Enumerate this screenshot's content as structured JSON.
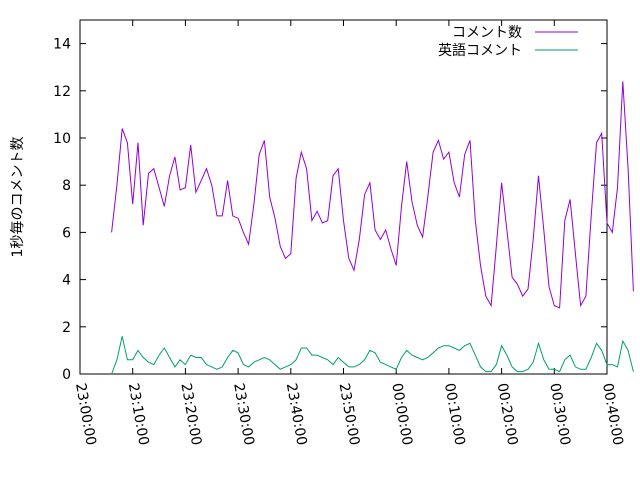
{
  "chart_data": {
    "type": "line",
    "title": "",
    "xlabel": "",
    "ylabel": "1秒毎のコメント数",
    "x_tick_labels": [
      "23:00:00",
      "23:10:00",
      "23:20:00",
      "23:30:00",
      "23:40:00",
      "23:50:00",
      "00:00:00",
      "00:10:00",
      "00:20:00",
      "00:30:00",
      "00:40:00"
    ],
    "x_range_minutes": [
      0,
      100
    ],
    "y_ticks": [
      0,
      2,
      4,
      6,
      8,
      10,
      12,
      14
    ],
    "ylim": [
      0,
      15
    ],
    "grid": false,
    "legend_position": "top-right",
    "series": [
      {
        "name": "コメント数",
        "color": "#9400d3",
        "points": [
          [
            6.0,
            6.0
          ],
          [
            7.0,
            8.0
          ],
          [
            8.0,
            10.4
          ],
          [
            9.0,
            9.8
          ],
          [
            10.0,
            7.2
          ],
          [
            11.0,
            9.8
          ],
          [
            12.0,
            6.3
          ],
          [
            13.0,
            8.5
          ],
          [
            14.0,
            8.7
          ],
          [
            15.0,
            7.9
          ],
          [
            16.0,
            7.1
          ],
          [
            17.0,
            8.4
          ],
          [
            18.0,
            9.2
          ],
          [
            19.0,
            7.8
          ],
          [
            20.0,
            7.9
          ],
          [
            21.0,
            9.7
          ],
          [
            22.0,
            7.7
          ],
          [
            23.0,
            8.2
          ],
          [
            24.0,
            8.7
          ],
          [
            25.0,
            8.0
          ],
          [
            26.0,
            6.7
          ],
          [
            27.0,
            6.7
          ],
          [
            28.0,
            8.2
          ],
          [
            29.0,
            6.7
          ],
          [
            30.0,
            6.6
          ],
          [
            31.0,
            6.0
          ],
          [
            32.0,
            5.5
          ],
          [
            33.0,
            7.2
          ],
          [
            34.0,
            9.3
          ],
          [
            35.0,
            9.9
          ],
          [
            36.0,
            7.5
          ],
          [
            37.0,
            6.6
          ],
          [
            38.0,
            5.4
          ],
          [
            39.0,
            4.9
          ],
          [
            40.0,
            5.1
          ],
          [
            41.0,
            8.3
          ],
          [
            42.0,
            9.4
          ],
          [
            43.0,
            8.7
          ],
          [
            44.0,
            6.5
          ],
          [
            45.0,
            6.9
          ],
          [
            46.0,
            6.4
          ],
          [
            47.0,
            6.5
          ],
          [
            48.0,
            8.4
          ],
          [
            49.0,
            8.7
          ],
          [
            50.0,
            6.5
          ],
          [
            51.0,
            4.9
          ],
          [
            52.0,
            4.4
          ],
          [
            53.0,
            5.7
          ],
          [
            54.0,
            7.6
          ],
          [
            55.0,
            8.1
          ],
          [
            56.0,
            6.1
          ],
          [
            57.0,
            5.7
          ],
          [
            58.0,
            6.1
          ],
          [
            59.0,
            5.3
          ],
          [
            60.0,
            4.6
          ],
          [
            61.0,
            7.1
          ],
          [
            62.0,
            9.0
          ],
          [
            63.0,
            7.3
          ],
          [
            64.0,
            6.3
          ],
          [
            65.0,
            5.8
          ],
          [
            66.0,
            7.5
          ],
          [
            67.0,
            9.4
          ],
          [
            68.0,
            9.9
          ],
          [
            69.0,
            9.1
          ],
          [
            70.0,
            9.4
          ],
          [
            71.0,
            8.1
          ],
          [
            72.0,
            7.5
          ],
          [
            73.0,
            9.3
          ],
          [
            74.0,
            9.9
          ],
          [
            75.0,
            6.5
          ],
          [
            76.0,
            4.6
          ],
          [
            77.0,
            3.3
          ],
          [
            78.0,
            2.9
          ],
          [
            79.0,
            5.4
          ],
          [
            80.0,
            8.1
          ],
          [
            81.0,
            6.1
          ],
          [
            82.0,
            4.1
          ],
          [
            83.0,
            3.8
          ],
          [
            84.0,
            3.3
          ],
          [
            85.0,
            3.6
          ],
          [
            86.0,
            5.7
          ],
          [
            87.0,
            8.4
          ],
          [
            88.0,
            6.1
          ],
          [
            89.0,
            3.7
          ],
          [
            90.0,
            2.9
          ],
          [
            91.0,
            2.8
          ],
          [
            92.0,
            6.5
          ],
          [
            93.0,
            7.4
          ],
          [
            94.0,
            5.1
          ],
          [
            95.0,
            2.9
          ],
          [
            96.0,
            3.3
          ],
          [
            97.0,
            6.7
          ],
          [
            98.0,
            9.8
          ],
          [
            99.0,
            10.2
          ],
          [
            100.0,
            6.4
          ],
          [
            101.0,
            6.0
          ],
          [
            102.0,
            7.9
          ],
          [
            103.0,
            12.4
          ],
          [
            104.0,
            8.7
          ],
          [
            105.0,
            3.5
          ]
        ]
      },
      {
        "name": "英語コメント",
        "color": "#009e73",
        "points": [
          [
            6.0,
            0.0
          ],
          [
            7.0,
            0.6
          ],
          [
            8.0,
            1.6
          ],
          [
            9.0,
            0.6
          ],
          [
            10.0,
            0.6
          ],
          [
            11.0,
            1.0
          ],
          [
            12.0,
            0.7
          ],
          [
            13.0,
            0.5
          ],
          [
            14.0,
            0.4
          ],
          [
            15.0,
            0.8
          ],
          [
            16.0,
            1.1
          ],
          [
            17.0,
            0.7
          ],
          [
            18.0,
            0.3
          ],
          [
            19.0,
            0.6
          ],
          [
            20.0,
            0.4
          ],
          [
            21.0,
            0.8
          ],
          [
            22.0,
            0.7
          ],
          [
            23.0,
            0.7
          ],
          [
            24.0,
            0.4
          ],
          [
            25.0,
            0.3
          ],
          [
            26.0,
            0.2
          ],
          [
            27.0,
            0.3
          ],
          [
            28.0,
            0.7
          ],
          [
            29.0,
            1.0
          ],
          [
            30.0,
            0.9
          ],
          [
            31.0,
            0.4
          ],
          [
            32.0,
            0.3
          ],
          [
            33.0,
            0.5
          ],
          [
            34.0,
            0.6
          ],
          [
            35.0,
            0.7
          ],
          [
            36.0,
            0.6
          ],
          [
            37.0,
            0.4
          ],
          [
            38.0,
            0.2
          ],
          [
            39.0,
            0.3
          ],
          [
            40.0,
            0.4
          ],
          [
            41.0,
            0.6
          ],
          [
            42.0,
            1.1
          ],
          [
            43.0,
            1.1
          ],
          [
            44.0,
            0.8
          ],
          [
            45.0,
            0.8
          ],
          [
            46.0,
            0.7
          ],
          [
            47.0,
            0.6
          ],
          [
            48.0,
            0.4
          ],
          [
            49.0,
            0.7
          ],
          [
            50.0,
            0.5
          ],
          [
            51.0,
            0.3
          ],
          [
            52.0,
            0.3
          ],
          [
            53.0,
            0.4
          ],
          [
            54.0,
            0.6
          ],
          [
            55.0,
            1.0
          ],
          [
            56.0,
            0.9
          ],
          [
            57.0,
            0.5
          ],
          [
            58.0,
            0.4
          ],
          [
            59.0,
            0.3
          ],
          [
            60.0,
            0.2
          ],
          [
            61.0,
            0.7
          ],
          [
            62.0,
            1.0
          ],
          [
            63.0,
            0.8
          ],
          [
            64.0,
            0.7
          ],
          [
            65.0,
            0.6
          ],
          [
            66.0,
            0.7
          ],
          [
            67.0,
            0.9
          ],
          [
            68.0,
            1.1
          ],
          [
            69.0,
            1.2
          ],
          [
            70.0,
            1.2
          ],
          [
            71.0,
            1.1
          ],
          [
            72.0,
            1.0
          ],
          [
            73.0,
            1.2
          ],
          [
            74.0,
            1.3
          ],
          [
            75.0,
            0.8
          ],
          [
            76.0,
            0.3
          ],
          [
            77.0,
            0.1
          ],
          [
            78.0,
            0.1
          ],
          [
            79.0,
            0.4
          ],
          [
            80.0,
            1.2
          ],
          [
            81.0,
            0.8
          ],
          [
            82.0,
            0.3
          ],
          [
            83.0,
            0.1
          ],
          [
            84.0,
            0.1
          ],
          [
            85.0,
            0.2
          ],
          [
            86.0,
            0.5
          ],
          [
            87.0,
            1.3
          ],
          [
            88.0,
            0.6
          ],
          [
            89.0,
            0.2
          ],
          [
            90.0,
            0.2
          ],
          [
            91.0,
            0.1
          ],
          [
            92.0,
            0.6
          ],
          [
            93.0,
            0.8
          ],
          [
            94.0,
            0.3
          ],
          [
            95.0,
            0.2
          ],
          [
            96.0,
            0.2
          ],
          [
            97.0,
            0.7
          ],
          [
            98.0,
            1.3
          ],
          [
            99.0,
            1.0
          ],
          [
            100.0,
            0.4
          ],
          [
            101.0,
            0.4
          ],
          [
            102.0,
            0.3
          ],
          [
            103.0,
            1.4
          ],
          [
            104.0,
            1.0
          ],
          [
            105.0,
            0.1
          ]
        ]
      }
    ]
  }
}
